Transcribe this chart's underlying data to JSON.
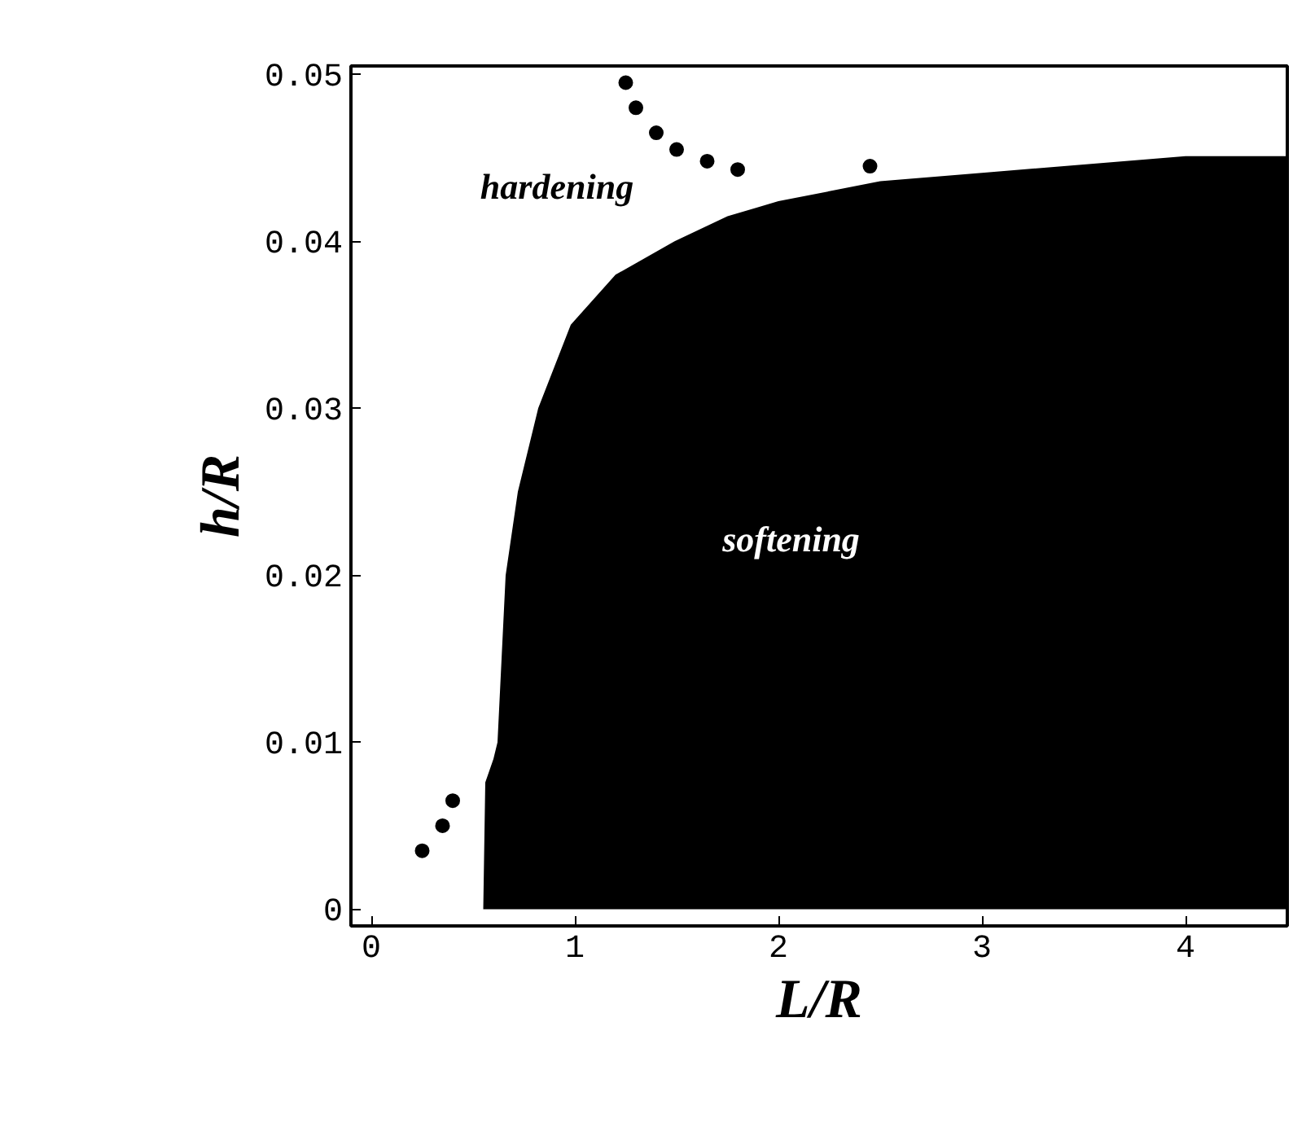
{
  "chart_data": {
    "type": "area",
    "xlabel": "L/R",
    "ylabel": "h/R",
    "xlim": [
      -0.1,
      4.5
    ],
    "ylim": [
      -0.001,
      0.0505
    ],
    "xticks": [
      0,
      1,
      2,
      3,
      4
    ],
    "yticks": [
      {
        "value": 0,
        "label": "0"
      },
      {
        "value": 0.01,
        "label": "0.01"
      },
      {
        "value": 0.02,
        "label": "0.02"
      },
      {
        "value": 0.03,
        "label": "0.03"
      },
      {
        "value": 0.04,
        "label": "0.04"
      },
      {
        "value": 0.05,
        "label": "0.05"
      }
    ],
    "grid": false,
    "series": [
      {
        "color": "#000000",
        "x": [
          0.55,
          0.56,
          0.6,
          0.62,
          0.64,
          0.66,
          0.72,
          0.82,
          0.98,
          1.2,
          1.49,
          1.75,
          2,
          2.5,
          3,
          3.5,
          4,
          4.5
        ],
        "values": [
          0,
          0.0076,
          0.009,
          0.01,
          0.015,
          0.02,
          0.025,
          0.03,
          0.035,
          0.038,
          0.04,
          0.0415,
          0.0424,
          0.0436,
          0.0441,
          0.0446,
          0.0451,
          0.0451
        ]
      },
      {
        "type": "scatter",
        "color": "#000000",
        "marker": "circle",
        "x": [
          0.25,
          0.35,
          0.4,
          1.25,
          1.3,
          1.4,
          1.5,
          1.65,
          1.8,
          2.45
        ],
        "values": [
          0.0035,
          0.005,
          0.0065,
          0.0495,
          0.048,
          0.0465,
          0.0455,
          0.0448,
          0.0443,
          0.0445
        ]
      }
    ],
    "annotations": [
      "hardening",
      "softening"
    ]
  }
}
